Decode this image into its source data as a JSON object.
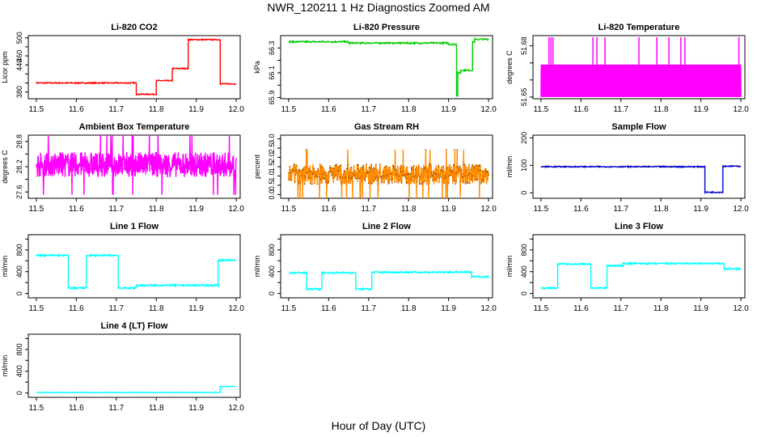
{
  "page": {
    "title": "NWR_120211  1 Hz Diagnostics Zoomed AM",
    "xlabel": "Hour of Day (UTC)"
  },
  "colors": {
    "co2": "#ff0000",
    "pressure": "#00cc00",
    "licor_temp": "#ff00ff",
    "box_temp": "#ff00ff",
    "rh_line": "#ff8c00",
    "rh_points": "#a05000",
    "sample_flow": "#0000cc",
    "line_flows": "#00ffff"
  },
  "chart_data": [
    {
      "type": "line",
      "title": "Li-820 CO2",
      "ylabel": "Licor ppm",
      "xlim": [
        11.48,
        12.01
      ],
      "ylim": [
        365,
        505
      ],
      "xticks": [
        11.5,
        11.6,
        11.7,
        11.8,
        11.9,
        12.0
      ],
      "xtick_labels": [
        "11.5",
        "11.6",
        "11.7",
        "11.8",
        "11.9",
        "12.0"
      ],
      "yticks": [
        380,
        400,
        420,
        440,
        460,
        480,
        500
      ],
      "ytick_labels": [
        "380",
        "",
        "",
        "440",
        "460",
        "",
        "500"
      ],
      "color_key": "co2",
      "noise": 1.2,
      "segments": [
        [
          11.5,
          11.75,
          400
        ],
        [
          11.75,
          11.8,
          375
        ],
        [
          11.8,
          11.84,
          405
        ],
        [
          11.84,
          11.88,
          432
        ],
        [
          11.88,
          11.96,
          496
        ],
        [
          11.96,
          12.0,
          398
        ]
      ]
    },
    {
      "type": "line",
      "title": "Li-820 Pressure",
      "ylabel": "kPa",
      "xlim": [
        11.48,
        12.01
      ],
      "ylim": [
        65.89,
        66.4
      ],
      "xticks": [
        11.5,
        11.6,
        11.7,
        11.8,
        11.9,
        12.0
      ],
      "xtick_labels": [
        "11.5",
        "11.6",
        "11.7",
        "11.8",
        "11.9",
        "12.0"
      ],
      "yticks": [
        65.9,
        66.0,
        66.1,
        66.2,
        66.3
      ],
      "ytick_labels": [
        "65.9",
        "",
        "66.1",
        "",
        "66.3"
      ],
      "color_key": "pressure",
      "noise": 0.006,
      "segments": [
        [
          11.5,
          11.65,
          66.35
        ],
        [
          11.65,
          11.9,
          66.34
        ],
        [
          11.9,
          11.92,
          66.33
        ],
        [
          11.92,
          11.923,
          65.92
        ],
        [
          11.923,
          11.93,
          66.1
        ],
        [
          11.93,
          11.96,
          66.12
        ],
        [
          11.96,
          11.965,
          66.35
        ],
        [
          11.965,
          12.0,
          66.37
        ]
      ]
    },
    {
      "type": "line",
      "title": "Li-820 Temperature",
      "ylabel": "degrees C",
      "xlim": [
        11.48,
        12.01
      ],
      "ylim": [
        51.649,
        51.686
      ],
      "xticks": [
        11.5,
        11.6,
        11.7,
        11.8,
        11.9,
        12.0
      ],
      "xtick_labels": [
        "11.5",
        "11.6",
        "11.7",
        "11.8",
        "11.9",
        "12.0"
      ],
      "yticks": [
        51.65,
        51.66,
        51.67,
        51.68
      ],
      "ytick_labels": [
        "51.65",
        "",
        "",
        "51.68"
      ],
      "color_key": "licor_temp",
      "range": [
        51.65,
        51.669
      ],
      "spikes": [
        11.52,
        11.525,
        11.53,
        11.63,
        11.64,
        11.66,
        11.745,
        11.79,
        11.82,
        11.85,
        11.86,
        11.995
      ]
    },
    {
      "type": "line",
      "title": "Ambient Box Temperature",
      "ylabel": "degrees C",
      "xlim": [
        11.48,
        12.01
      ],
      "ylim": [
        27.45,
        28.95
      ],
      "xticks": [
        11.5,
        11.6,
        11.7,
        11.8,
        11.9,
        12.0
      ],
      "xtick_labels": [
        "11.5",
        "11.6",
        "11.7",
        "11.8",
        "11.9",
        "12.0"
      ],
      "yticks": [
        27.6,
        27.9,
        28.2,
        28.5,
        28.8
      ],
      "ytick_labels": [
        "27.6",
        "",
        "28.2",
        "",
        "28.8"
      ],
      "color_key": "box_temp",
      "center": 28.25,
      "noise": 0.3
    },
    {
      "type": "line",
      "title": "Gas Stream RH",
      "ylabel": "percent",
      "xlim": [
        11.48,
        12.01
      ],
      "ylim": [
        -0.2,
        3.2
      ],
      "xticks": [
        11.5,
        11.6,
        11.7,
        11.8,
        11.9,
        12.0
      ],
      "xtick_labels": [
        "11.5",
        "11.6",
        "11.7",
        "11.8",
        "11.9",
        "12.0"
      ],
      "yticks": [
        0,
        0.5,
        1.0,
        1.5,
        2.0,
        2.5,
        3.0
      ],
      "ytick_labels": [
        "0.0",
        "0.5",
        "1.0",
        "1.5",
        "2.0",
        "2.5",
        "3.0"
      ],
      "color_key": "rh_line",
      "center": 1.1,
      "noise": 0.55
    },
    {
      "type": "line",
      "title": "Sample Flow",
      "ylabel": "ml/min",
      "xlim": [
        11.48,
        12.01
      ],
      "ylim": [
        -20,
        210
      ],
      "xticks": [
        11.5,
        11.6,
        11.7,
        11.8,
        11.9,
        12.0
      ],
      "xtick_labels": [
        "11.5",
        "11.6",
        "11.7",
        "11.8",
        "11.9",
        "12.0"
      ],
      "yticks": [
        0,
        100,
        200
      ],
      "ytick_labels": [
        "0",
        "100",
        "200"
      ],
      "color_key": "sample_flow",
      "noise": 2,
      "segments": [
        [
          11.5,
          11.91,
          95
        ],
        [
          11.91,
          11.955,
          2
        ],
        [
          11.955,
          12.0,
          97
        ]
      ]
    },
    {
      "type": "line",
      "title": "Line 1 Flow",
      "ylabel": "ml/min",
      "xlim": [
        11.48,
        12.01
      ],
      "ylim": [
        -80,
        1080
      ],
      "xticks": [
        11.5,
        11.6,
        11.7,
        11.8,
        11.9,
        12.0
      ],
      "xtick_labels": [
        "11.5",
        "11.6",
        "11.7",
        "11.8",
        "11.9",
        "12.0"
      ],
      "yticks": [
        0,
        200,
        400,
        600,
        800,
        1000
      ],
      "ytick_labels": [
        "0",
        "",
        "400",
        "",
        "800",
        ""
      ],
      "color_key": "line_flows",
      "noise": 15,
      "segments": [
        [
          11.5,
          11.58,
          700
        ],
        [
          11.58,
          11.625,
          100
        ],
        [
          11.625,
          11.705,
          700
        ],
        [
          11.705,
          11.75,
          100
        ],
        [
          11.75,
          11.955,
          150
        ],
        [
          11.955,
          12.0,
          610
        ]
      ]
    },
    {
      "type": "line",
      "title": "Line 2 Flow",
      "ylabel": "ml/min",
      "xlim": [
        11.48,
        12.01
      ],
      "ylim": [
        -80,
        1080
      ],
      "xticks": [
        11.5,
        11.6,
        11.7,
        11.8,
        11.9,
        12.0
      ],
      "xtick_labels": [
        "11.5",
        "11.6",
        "11.7",
        "11.8",
        "11.9",
        "12.0"
      ],
      "yticks": [
        0,
        200,
        400,
        600,
        800,
        1000
      ],
      "ytick_labels": [
        "0",
        "",
        "400",
        "",
        "800",
        ""
      ],
      "color_key": "line_flows",
      "noise": 15,
      "segments": [
        [
          11.5,
          11.545,
          380
        ],
        [
          11.545,
          11.583,
          80
        ],
        [
          11.583,
          11.668,
          380
        ],
        [
          11.668,
          11.708,
          80
        ],
        [
          11.708,
          11.958,
          390
        ],
        [
          11.958,
          12.0,
          310
        ]
      ]
    },
    {
      "type": "line",
      "title": "Line 3 Flow",
      "ylabel": "ml/min",
      "xlim": [
        11.48,
        12.01
      ],
      "ylim": [
        -80,
        1080
      ],
      "xticks": [
        11.5,
        11.6,
        11.7,
        11.8,
        11.9,
        12.0
      ],
      "xtick_labels": [
        "11.5",
        "11.6",
        "11.7",
        "11.8",
        "11.9",
        "12.0"
      ],
      "yticks": [
        0,
        200,
        400,
        600,
        800,
        1000
      ],
      "ytick_labels": [
        "0",
        "",
        "400",
        "",
        "800",
        ""
      ],
      "color_key": "line_flows",
      "noise": 15,
      "segments": [
        [
          11.5,
          11.542,
          100
        ],
        [
          11.542,
          11.625,
          540
        ],
        [
          11.625,
          11.665,
          100
        ],
        [
          11.665,
          11.705,
          510
        ],
        [
          11.705,
          11.958,
          550
        ],
        [
          11.958,
          12.0,
          450
        ]
      ]
    },
    {
      "type": "line",
      "title": "Line 4 (LT) Flow",
      "ylabel": "ml/min",
      "xlim": [
        11.48,
        12.01
      ],
      "ylim": [
        -80,
        1080
      ],
      "xticks": [
        11.5,
        11.6,
        11.7,
        11.8,
        11.9,
        12.0
      ],
      "xtick_labels": [
        "11.5",
        "11.6",
        "11.7",
        "11.8",
        "11.9",
        "12.0"
      ],
      "yticks": [
        0,
        200,
        400,
        600,
        800,
        1000
      ],
      "ytick_labels": [
        "0",
        "",
        "400",
        "",
        "800",
        ""
      ],
      "color_key": "line_flows",
      "noise": 4,
      "segments": [
        [
          11.5,
          11.96,
          10
        ],
        [
          11.96,
          12.0,
          120
        ]
      ]
    }
  ]
}
